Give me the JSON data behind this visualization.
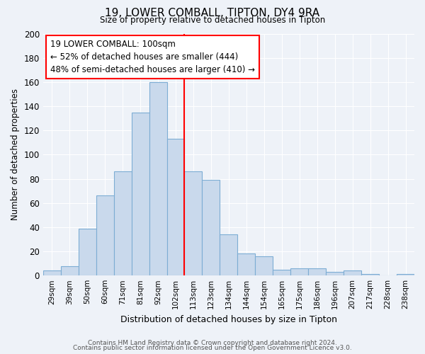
{
  "title": "19, LOWER COMBALL, TIPTON, DY4 9RA",
  "subtitle": "Size of property relative to detached houses in Tipton",
  "xlabel": "Distribution of detached houses by size in Tipton",
  "ylabel": "Number of detached properties",
  "bar_labels": [
    "29sqm",
    "39sqm",
    "50sqm",
    "60sqm",
    "71sqm",
    "81sqm",
    "92sqm",
    "102sqm",
    "113sqm",
    "123sqm",
    "134sqm",
    "144sqm",
    "154sqm",
    "165sqm",
    "175sqm",
    "186sqm",
    "196sqm",
    "207sqm",
    "217sqm",
    "228sqm",
    "238sqm"
  ],
  "bar_heights": [
    4,
    8,
    39,
    66,
    86,
    135,
    160,
    113,
    86,
    79,
    34,
    18,
    16,
    5,
    6,
    6,
    3,
    4,
    1,
    0,
    1
  ],
  "bar_color": "#c9d9ec",
  "bar_edge_color": "#7dadd4",
  "reference_line_color": "red",
  "reference_bar_index": 7,
  "annotation_title": "19 LOWER COMBALL: 100sqm",
  "annotation_line1": "← 52% of detached houses are smaller (444)",
  "annotation_line2": "48% of semi-detached houses are larger (410) →",
  "annotation_box_color": "white",
  "annotation_box_edge": "red",
  "ylim": [
    0,
    200
  ],
  "yticks": [
    0,
    20,
    40,
    60,
    80,
    100,
    120,
    140,
    160,
    180,
    200
  ],
  "footnote1": "Contains HM Land Registry data © Crown copyright and database right 2024.",
  "footnote2": "Contains public sector information licensed under the Open Government Licence v3.0.",
  "bg_color": "#eef2f8",
  "grid_color": "white"
}
